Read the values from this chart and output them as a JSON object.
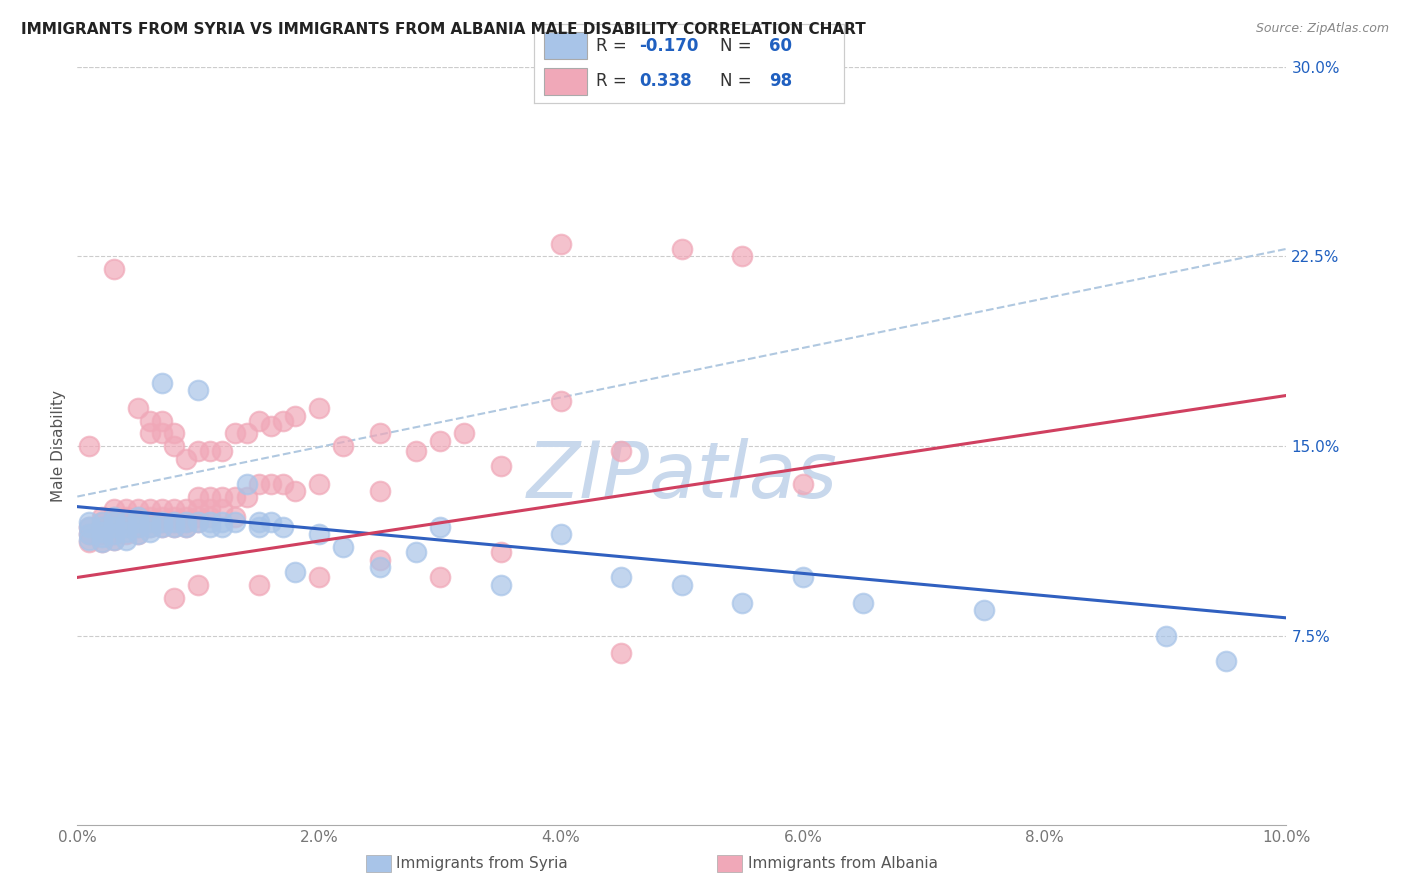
{
  "title": "IMMIGRANTS FROM SYRIA VS IMMIGRANTS FROM ALBANIA MALE DISABILITY CORRELATION CHART",
  "source": "Source: ZipAtlas.com",
  "ylabel": "Male Disability",
  "xlim": [
    0.0,
    0.1
  ],
  "ylim": [
    0.0,
    0.3
  ],
  "xticks": [
    0.0,
    0.02,
    0.04,
    0.06,
    0.08,
    0.1
  ],
  "yticks_right": [
    0.075,
    0.15,
    0.225,
    0.3
  ],
  "syria_color": "#a8c4e8",
  "albania_color": "#f0a8b8",
  "syria_line_color": "#3060c0",
  "albania_line_color": "#d04060",
  "dashed_line_color": "#b0c8e0",
  "syria_R": "-0.170",
  "syria_N": "60",
  "albania_R": "0.338",
  "albania_N": "98",
  "legend_blue_color": "#2060c0",
  "legend_black_color": "#333333",
  "tick_color": "#777777",
  "ylabel_color": "#555555",
  "grid_color": "#cccccc",
  "watermark": "ZIPatlas",
  "watermark_color": "#c8d8ec",
  "syria_trend": [
    0.126,
    0.082
  ],
  "albania_trend": [
    0.098,
    0.17
  ],
  "dashed_trend": [
    0.13,
    0.228
  ],
  "syria_points": [
    [
      0.001,
      0.12
    ],
    [
      0.001,
      0.118
    ],
    [
      0.001,
      0.115
    ],
    [
      0.001,
      0.113
    ],
    [
      0.002,
      0.12
    ],
    [
      0.002,
      0.118
    ],
    [
      0.002,
      0.116
    ],
    [
      0.002,
      0.114
    ],
    [
      0.002,
      0.112
    ],
    [
      0.003,
      0.122
    ],
    [
      0.003,
      0.12
    ],
    [
      0.003,
      0.118
    ],
    [
      0.003,
      0.115
    ],
    [
      0.003,
      0.113
    ],
    [
      0.004,
      0.12
    ],
    [
      0.004,
      0.118
    ],
    [
      0.004,
      0.116
    ],
    [
      0.004,
      0.113
    ],
    [
      0.005,
      0.122
    ],
    [
      0.005,
      0.12
    ],
    [
      0.005,
      0.118
    ],
    [
      0.005,
      0.115
    ],
    [
      0.006,
      0.12
    ],
    [
      0.006,
      0.118
    ],
    [
      0.006,
      0.116
    ],
    [
      0.007,
      0.175
    ],
    [
      0.007,
      0.12
    ],
    [
      0.007,
      0.118
    ],
    [
      0.008,
      0.12
    ],
    [
      0.008,
      0.118
    ],
    [
      0.009,
      0.12
    ],
    [
      0.009,
      0.118
    ],
    [
      0.01,
      0.172
    ],
    [
      0.01,
      0.12
    ],
    [
      0.011,
      0.12
    ],
    [
      0.011,
      0.118
    ],
    [
      0.012,
      0.12
    ],
    [
      0.012,
      0.118
    ],
    [
      0.013,
      0.12
    ],
    [
      0.014,
      0.135
    ],
    [
      0.015,
      0.12
    ],
    [
      0.015,
      0.118
    ],
    [
      0.016,
      0.12
    ],
    [
      0.017,
      0.118
    ],
    [
      0.018,
      0.1
    ],
    [
      0.02,
      0.115
    ],
    [
      0.022,
      0.11
    ],
    [
      0.025,
      0.102
    ],
    [
      0.028,
      0.108
    ],
    [
      0.03,
      0.118
    ],
    [
      0.035,
      0.095
    ],
    [
      0.04,
      0.115
    ],
    [
      0.045,
      0.098
    ],
    [
      0.05,
      0.095
    ],
    [
      0.055,
      0.088
    ],
    [
      0.06,
      0.098
    ],
    [
      0.065,
      0.088
    ],
    [
      0.075,
      0.085
    ],
    [
      0.09,
      0.075
    ],
    [
      0.095,
      0.065
    ]
  ],
  "albania_points": [
    [
      0.001,
      0.15
    ],
    [
      0.001,
      0.118
    ],
    [
      0.001,
      0.115
    ],
    [
      0.001,
      0.112
    ],
    [
      0.002,
      0.122
    ],
    [
      0.002,
      0.12
    ],
    [
      0.002,
      0.118
    ],
    [
      0.002,
      0.115
    ],
    [
      0.002,
      0.112
    ],
    [
      0.003,
      0.22
    ],
    [
      0.003,
      0.125
    ],
    [
      0.003,
      0.122
    ],
    [
      0.003,
      0.12
    ],
    [
      0.003,
      0.118
    ],
    [
      0.003,
      0.115
    ],
    [
      0.003,
      0.113
    ],
    [
      0.004,
      0.125
    ],
    [
      0.004,
      0.122
    ],
    [
      0.004,
      0.12
    ],
    [
      0.004,
      0.118
    ],
    [
      0.004,
      0.115
    ],
    [
      0.005,
      0.165
    ],
    [
      0.005,
      0.125
    ],
    [
      0.005,
      0.122
    ],
    [
      0.005,
      0.12
    ],
    [
      0.005,
      0.118
    ],
    [
      0.005,
      0.115
    ],
    [
      0.006,
      0.16
    ],
    [
      0.006,
      0.155
    ],
    [
      0.006,
      0.125
    ],
    [
      0.006,
      0.122
    ],
    [
      0.006,
      0.12
    ],
    [
      0.006,
      0.118
    ],
    [
      0.007,
      0.16
    ],
    [
      0.007,
      0.155
    ],
    [
      0.007,
      0.125
    ],
    [
      0.007,
      0.122
    ],
    [
      0.007,
      0.12
    ],
    [
      0.007,
      0.118
    ],
    [
      0.008,
      0.155
    ],
    [
      0.008,
      0.15
    ],
    [
      0.008,
      0.125
    ],
    [
      0.008,
      0.122
    ],
    [
      0.008,
      0.12
    ],
    [
      0.008,
      0.118
    ],
    [
      0.009,
      0.145
    ],
    [
      0.009,
      0.125
    ],
    [
      0.009,
      0.122
    ],
    [
      0.009,
      0.12
    ],
    [
      0.009,
      0.118
    ],
    [
      0.01,
      0.148
    ],
    [
      0.01,
      0.13
    ],
    [
      0.01,
      0.125
    ],
    [
      0.01,
      0.122
    ],
    [
      0.01,
      0.12
    ],
    [
      0.011,
      0.148
    ],
    [
      0.011,
      0.13
    ],
    [
      0.011,
      0.125
    ],
    [
      0.011,
      0.122
    ],
    [
      0.012,
      0.148
    ],
    [
      0.012,
      0.13
    ],
    [
      0.012,
      0.125
    ],
    [
      0.013,
      0.155
    ],
    [
      0.013,
      0.13
    ],
    [
      0.013,
      0.122
    ],
    [
      0.014,
      0.155
    ],
    [
      0.014,
      0.13
    ],
    [
      0.015,
      0.16
    ],
    [
      0.015,
      0.135
    ],
    [
      0.016,
      0.158
    ],
    [
      0.016,
      0.135
    ],
    [
      0.017,
      0.16
    ],
    [
      0.017,
      0.135
    ],
    [
      0.018,
      0.162
    ],
    [
      0.018,
      0.132
    ],
    [
      0.02,
      0.165
    ],
    [
      0.02,
      0.135
    ],
    [
      0.022,
      0.15
    ],
    [
      0.025,
      0.155
    ],
    [
      0.025,
      0.132
    ],
    [
      0.028,
      0.148
    ],
    [
      0.03,
      0.152
    ],
    [
      0.032,
      0.155
    ],
    [
      0.035,
      0.142
    ],
    [
      0.04,
      0.23
    ],
    [
      0.04,
      0.168
    ],
    [
      0.045,
      0.148
    ],
    [
      0.05,
      0.228
    ],
    [
      0.055,
      0.225
    ],
    [
      0.06,
      0.135
    ],
    [
      0.045,
      0.068
    ],
    [
      0.035,
      0.108
    ],
    [
      0.03,
      0.098
    ],
    [
      0.025,
      0.105
    ],
    [
      0.02,
      0.098
    ],
    [
      0.015,
      0.095
    ],
    [
      0.01,
      0.095
    ],
    [
      0.008,
      0.09
    ]
  ]
}
